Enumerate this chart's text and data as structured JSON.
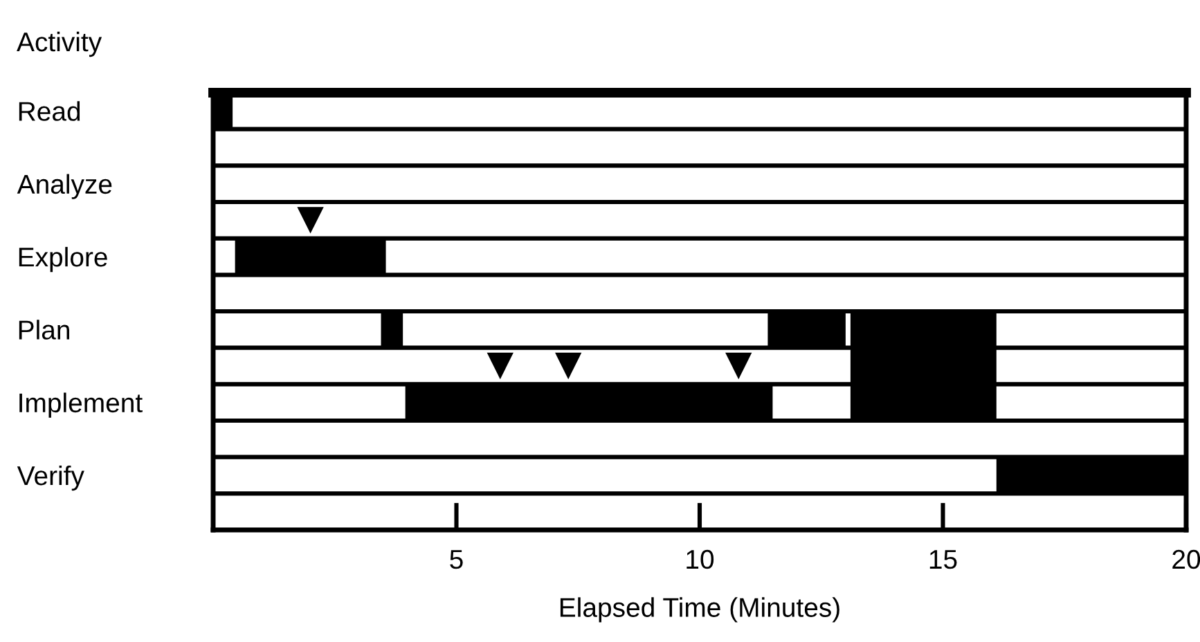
{
  "chart_data": {
    "type": "bar",
    "orientation": "horizontal",
    "title": "Activity",
    "xlabel": "Elapsed Time (Minutes)",
    "categories": [
      "Read",
      null,
      "Analyze",
      null,
      "Explore",
      null,
      "Plan",
      null,
      "Implement",
      null,
      "Verify",
      null
    ],
    "series": [
      {
        "color": "#000000",
        "values": [
          0.4,
          null,
          null,
          null,
          3.1,
          null,
          0.45,
          null,
          7.55,
          null,
          3.9,
          null
        ],
        "base": [
          0,
          null,
          null,
          null,
          0.45,
          null,
          3.45,
          null,
          3.95,
          null,
          16.1,
          null
        ]
      },
      {
        "color": "#000000",
        "values": [
          null,
          null,
          null,
          null,
          null,
          null,
          1.6,
          null,
          null,
          null,
          null,
          null
        ],
        "base": [
          null,
          null,
          null,
          null,
          null,
          null,
          11.4,
          null,
          null,
          null,
          null,
          null
        ]
      },
      {
        "color": "#000000",
        "values": [
          null,
          null,
          null,
          null,
          null,
          null,
          3.0,
          3.0,
          3.0,
          null,
          null,
          null
        ],
        "base": [
          null,
          null,
          null,
          null,
          null,
          null,
          13.1,
          13.1,
          13.1,
          null,
          null,
          null
        ]
      },
      {
        "type": "scatter",
        "color": "#000000",
        "marker": "triangle",
        "values": [
          null,
          null,
          null,
          2.0,
          null,
          null,
          null,
          5.9,
          null,
          null,
          null,
          null
        ]
      },
      {
        "type": "scatter",
        "color": "#000000",
        "marker": "triangle",
        "values": [
          null,
          null,
          null,
          null,
          null,
          null,
          null,
          7.3,
          null,
          null,
          null,
          null
        ]
      },
      {
        "type": "scatter",
        "color": "#000000",
        "marker": "triangle",
        "values": [
          null,
          null,
          null,
          null,
          null,
          null,
          null,
          10.8,
          null,
          null,
          null,
          null
        ]
      }
    ],
    "xlim": [
      0,
      20
    ],
    "xticks": [
      5,
      10,
      15,
      20
    ],
    "grid": false,
    "legend": false
  }
}
